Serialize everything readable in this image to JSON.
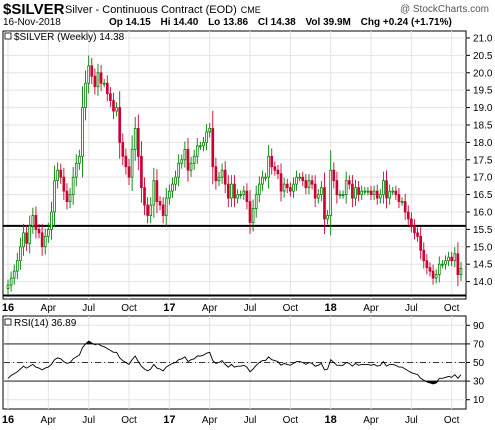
{
  "header": {
    "symbol": "$SILVER",
    "description": "Silver - Continuous Contract (EOD)",
    "exchange": "CME",
    "copyright": "@ StockCharts.com",
    "date": "16-Nov-2018",
    "open_label": "Op",
    "open": "14.15",
    "high_label": "Hi",
    "high": "14.40",
    "low_label": "Lo",
    "low": "13.86",
    "close_label": "Cl",
    "close": "14.38",
    "volume_label": "Vol",
    "volume": "39.9M",
    "change_label": "Chg",
    "change": "+0.24 (+1.71%)"
  },
  "colors": {
    "up": "#008000",
    "down": "#cc0033",
    "rsi_line": "#000000",
    "support": "#000000"
  },
  "chart_data": [
    {
      "type": "candlestick",
      "legend": "$SILVER (Weekly) 14.38",
      "ylim": [
        13.5,
        21.2
      ],
      "y_ticks": [
        14.0,
        14.5,
        15.0,
        15.5,
        16.0,
        16.5,
        17.0,
        17.5,
        18.0,
        18.5,
        19.0,
        19.5,
        20.0,
        20.5,
        21.0
      ],
      "x_tick_labels": [
        "16",
        "Apr",
        "Jul",
        "Oct",
        "17",
        "Apr",
        "Jul",
        "Oct",
        "18",
        "Apr",
        "Jul",
        "Oct"
      ],
      "x_tick_bold": [
        true,
        false,
        false,
        false,
        true,
        false,
        false,
        false,
        true,
        false,
        false,
        false
      ],
      "x_tick_weeks": [
        0,
        13,
        26,
        39,
        52,
        65,
        78,
        91,
        104,
        117,
        130,
        143
      ],
      "horizontal_lines": [
        15.6,
        13.6
      ],
      "weekly_close": [
        13.9,
        14.1,
        14.3,
        14.6,
        15.0,
        15.4,
        15.1,
        15.6,
        15.9,
        15.5,
        15.4,
        15.0,
        15.3,
        15.5,
        16.0,
        16.9,
        17.2,
        17.0,
        16.6,
        16.3,
        16.5,
        17.0,
        17.4,
        17.6,
        19.0,
        19.7,
        20.2,
        19.9,
        19.6,
        20.0,
        19.7,
        19.7,
        19.4,
        19.2,
        18.9,
        19.0,
        18.0,
        17.6,
        17.3,
        17.0,
        17.8,
        18.4,
        17.6,
        16.7,
        16.2,
        15.9,
        16.2,
        16.9,
        16.3,
        16.2,
        15.9,
        16.4,
        16.6,
        16.8,
        17.0,
        17.4,
        17.5,
        17.8,
        17.2,
        17.4,
        17.6,
        17.9,
        17.9,
        18.0,
        18.3,
        18.4,
        17.3,
        16.9,
        17.0,
        17.2,
        16.8,
        16.4,
        16.8,
        16.4,
        16.5,
        16.5,
        16.6,
        16.3,
        15.7,
        16.1,
        16.5,
        16.8,
        17.0,
        17.0,
        17.6,
        17.3,
        17.2,
        17.1,
        16.6,
        16.8,
        16.7,
        16.6,
        16.8,
        17.0,
        17.0,
        16.9,
        16.7,
        16.9,
        16.8,
        16.4,
        16.5,
        16.7,
        15.8,
        15.9,
        17.2,
        16.9,
        16.5,
        16.5,
        16.5,
        16.9,
        16.8,
        16.4,
        16.7,
        16.5,
        16.6,
        16.6,
        16.6,
        16.5,
        16.6,
        16.4,
        16.5,
        16.9,
        16.4,
        16.6,
        16.6,
        16.5,
        16.3,
        16.3,
        16.0,
        15.8,
        15.6,
        15.4,
        15.3,
        14.9,
        14.6,
        14.4,
        14.3,
        14.1,
        14.2,
        14.5,
        14.5,
        14.6,
        14.7,
        14.6,
        14.8,
        14.2,
        14.38
      ],
      "rsi": {
        "label": "RSI(14) 36.89",
        "ylim": [
          0,
          100
        ],
        "y_ticks": [
          10,
          30,
          50,
          70,
          90
        ],
        "reference_lines": [
          70,
          30
        ],
        "center_line": 50,
        "values": [
          33,
          36,
          38,
          40,
          43,
          46,
          44,
          46,
          48,
          45,
          44,
          42,
          44,
          45,
          48,
          53,
          55,
          54,
          51,
          49,
          50,
          54,
          56,
          58,
          66,
          70,
          73,
          71,
          69,
          70,
          68,
          67,
          65,
          63,
          61,
          61,
          55,
          52,
          50,
          48,
          53,
          57,
          51,
          46,
          43,
          41,
          43,
          48,
          44,
          43,
          41,
          45,
          47,
          49,
          50,
          53,
          54,
          56,
          51,
          53,
          54,
          57,
          57,
          58,
          60,
          61,
          52,
          49,
          50,
          52,
          48,
          45,
          48,
          45,
          46,
          46,
          47,
          45,
          40,
          43,
          47,
          50,
          52,
          52,
          56,
          53,
          52,
          51,
          47,
          49,
          48,
          47,
          49,
          51,
          51,
          50,
          48,
          50,
          49,
          46,
          47,
          49,
          42,
          43,
          53,
          50,
          47,
          47,
          47,
          50,
          49,
          46,
          49,
          47,
          48,
          48,
          48,
          47,
          48,
          46,
          47,
          51,
          46,
          48,
          48,
          47,
          45,
          45,
          43,
          41,
          39,
          38,
          37,
          33,
          31,
          29,
          28,
          27,
          28,
          33,
          33,
          34,
          35,
          34,
          37,
          33,
          36.89
        ]
      }
    }
  ]
}
